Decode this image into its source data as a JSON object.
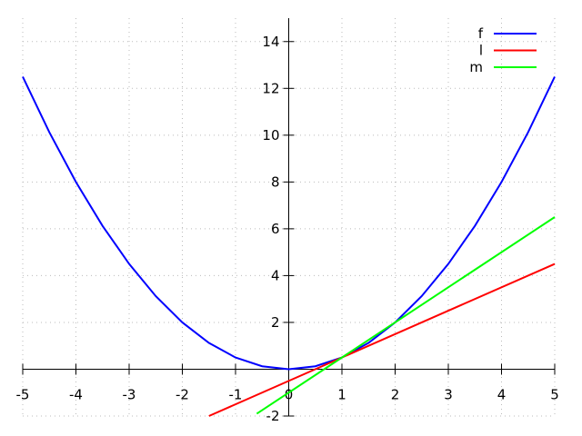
{
  "chart_data": {
    "type": "line",
    "title": "",
    "xlabel": "",
    "ylabel": "",
    "xlim": [
      -5,
      5
    ],
    "ylim": [
      -2,
      15
    ],
    "xticks": [
      -5,
      -4,
      -3,
      -2,
      -1,
      0,
      1,
      2,
      3,
      4,
      5
    ],
    "yticks": [
      -2,
      0,
      2,
      4,
      6,
      8,
      10,
      12,
      14
    ],
    "grid": true,
    "legend_position": "top-right",
    "series": [
      {
        "name": "f",
        "color": "#0000ff",
        "x": [
          -5,
          -4.5,
          -4,
          -3.5,
          -3,
          -2.5,
          -2,
          -1.5,
          -1,
          -0.5,
          0,
          0.5,
          1,
          1.5,
          2,
          2.5,
          3,
          3.5,
          4,
          4.5,
          5
        ],
        "y": [
          12.5,
          10.125,
          8,
          6.125,
          4.5,
          3.125,
          2,
          1.125,
          0.5,
          0.125,
          0,
          0.125,
          0.5,
          1.125,
          2,
          3.125,
          4.5,
          6.125,
          8,
          10.125,
          12.5
        ]
      },
      {
        "name": "l",
        "color": "#ff0000",
        "x": [
          -1.5,
          5
        ],
        "y": [
          -2,
          4.5
        ]
      },
      {
        "name": "m",
        "color": "#00ff00",
        "x": [
          -0.6,
          5
        ],
        "y": [
          -1.9,
          6.5
        ]
      }
    ]
  }
}
